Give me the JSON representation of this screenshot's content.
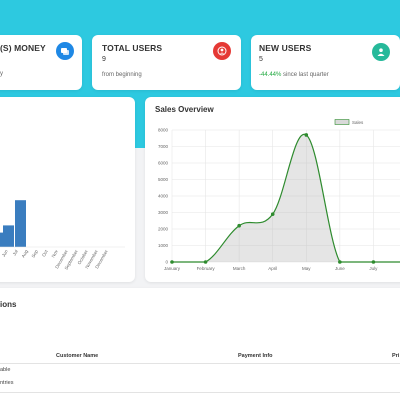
{
  "cards": [
    {
      "title": "(S) MONEY",
      "value": "",
      "sub": "y",
      "icon": "stack-icon",
      "color": "#1e88e5"
    },
    {
      "title": "TOTAL USERS",
      "value": "9",
      "sub": "from beginning",
      "icon": "user-icon",
      "color": "#e53935"
    },
    {
      "title": "NEW USERS",
      "value": "5",
      "sub_highlight": "-44.44%",
      "sub": "since last quarter",
      "icon": "user-icon",
      "color": "#26b99a"
    }
  ],
  "left_chart": {
    "tick_labels": [
      "Jun",
      "Jul",
      "Aug",
      "Sep",
      "Oct",
      "Nov",
      "December",
      "September",
      "October",
      "November",
      "December"
    ]
  },
  "sales": {
    "title": "Sales Overview",
    "legend": "Sales"
  },
  "chart_data": [
    {
      "type": "area",
      "title": "Sales Overview",
      "x": [
        "January",
        "February",
        "March",
        "April",
        "May",
        "June",
        "July",
        "August"
      ],
      "series": [
        {
          "name": "Sales",
          "values": [
            0,
            0,
            2200,
            2900,
            7700,
            0,
            0,
            0
          ]
        }
      ],
      "ylim": [
        0,
        8000
      ],
      "yticks": [
        0,
        1000,
        2000,
        3000,
        4000,
        5000,
        6000,
        7000,
        8000
      ],
      "grid": true,
      "legend_position": "top-right",
      "color": "#2e8b2e"
    },
    {
      "type": "bar",
      "categories": [
        "",
        "",
        "Jun",
        "Jul",
        "Aug",
        "Sep",
        "Oct",
        "Nov",
        "December",
        "September",
        "October",
        "November",
        "December"
      ],
      "values": [
        0,
        0,
        0,
        0,
        0,
        0,
        0,
        0,
        0,
        0,
        0,
        0,
        0
      ],
      "partial_visible_values": [
        0.8,
        1.2,
        2.6
      ],
      "color": "#3a7dbf"
    }
  ],
  "transactions": {
    "title": "ions",
    "columns": [
      "Customer Name",
      "Payment Info",
      "Pri"
    ],
    "left_text": [
      "able",
      "ntries"
    ]
  }
}
